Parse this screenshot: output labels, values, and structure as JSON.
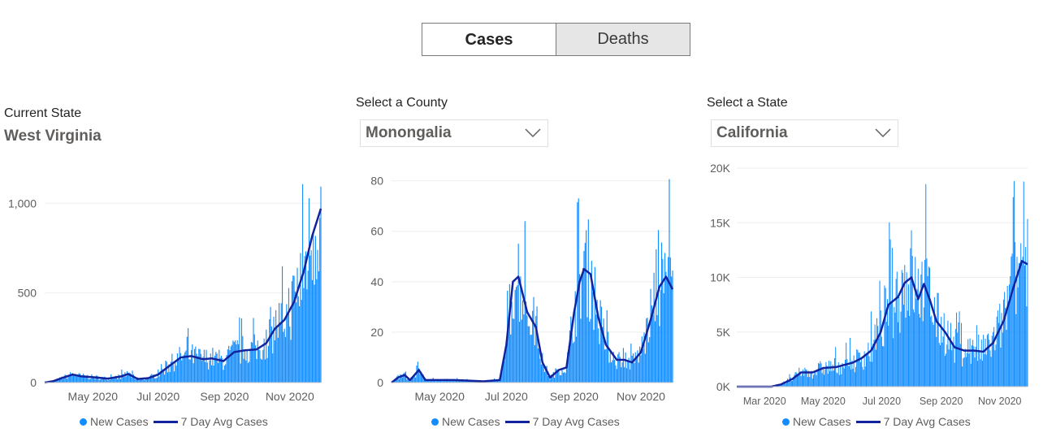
{
  "toggle": {
    "cases_label": "Cases",
    "deaths_label": "Deaths",
    "selected": "Cases"
  },
  "panels": {
    "state": {
      "label": "Current State",
      "value": "West Virginia"
    },
    "county": {
      "label": "Select a County",
      "value": "Monongalia"
    },
    "compare": {
      "label": "Select a State",
      "value": "California"
    }
  },
  "colors": {
    "bars": "#118dff",
    "avg_line": "#12239e"
  },
  "chart_data": [
    {
      "type": "bar",
      "title": "",
      "ylim": [
        0,
        1160
      ],
      "yticks": [
        0,
        500,
        1000
      ],
      "yticklabels": [
        "0",
        "500",
        "1,000"
      ],
      "xlim": [
        "2020-03-17",
        "2020-11-30"
      ],
      "xticks": [
        "2020-05-01",
        "2020-07-01",
        "2020-09-01",
        "2020-11-01"
      ],
      "xticklabels": [
        "May 2020",
        "Jul 2020",
        "Sep 2020",
        "Nov 2020"
      ],
      "anchors": [
        [
          "2020-03-17",
          0
        ],
        [
          "2020-03-25",
          8
        ],
        [
          "2020-04-02",
          25
        ],
        [
          "2020-04-12",
          45
        ],
        [
          "2020-04-20",
          35
        ],
        [
          "2020-05-01",
          30
        ],
        [
          "2020-05-15",
          22
        ],
        [
          "2020-05-28",
          35
        ],
        [
          "2020-06-03",
          48
        ],
        [
          "2020-06-12",
          20
        ],
        [
          "2020-06-22",
          25
        ],
        [
          "2020-07-01",
          45
        ],
        [
          "2020-07-12",
          95
        ],
        [
          "2020-07-22",
          140
        ],
        [
          "2020-08-01",
          148
        ],
        [
          "2020-08-12",
          130
        ],
        [
          "2020-08-20",
          135
        ],
        [
          "2020-08-31",
          120
        ],
        [
          "2020-09-10",
          170
        ],
        [
          "2020-09-20",
          180
        ],
        [
          "2020-10-01",
          185
        ],
        [
          "2020-10-10",
          220
        ],
        [
          "2020-10-18",
          300
        ],
        [
          "2020-10-27",
          350
        ],
        [
          "2020-11-05",
          450
        ],
        [
          "2020-11-14",
          620
        ],
        [
          "2020-11-22",
          820
        ],
        [
          "2020-11-30",
          970
        ]
      ],
      "series": [
        {
          "name": "New Cases",
          "type": "bar"
        },
        {
          "name": "7 Day Avg Cases",
          "type": "line"
        }
      ],
      "legend": {
        "position": "bottom",
        "items": [
          "New Cases",
          "7 Day Avg Cases"
        ]
      }
    },
    {
      "type": "bar",
      "title": "",
      "ylim": [
        0,
        86
      ],
      "yticks": [
        0,
        20,
        40,
        60,
        80
      ],
      "yticklabels": [
        "0",
        "20",
        "40",
        "60",
        "80"
      ],
      "xlim": [
        "2020-03-18",
        "2020-11-30"
      ],
      "xticks": [
        "2020-05-01",
        "2020-07-01",
        "2020-09-01",
        "2020-11-01"
      ],
      "xticklabels": [
        "May 2020",
        "Jul 2020",
        "Sep 2020",
        "Nov 2020"
      ],
      "anchors": [
        [
          "2020-03-18",
          0
        ],
        [
          "2020-03-24",
          2
        ],
        [
          "2020-03-30",
          3
        ],
        [
          "2020-04-04",
          1
        ],
        [
          "2020-04-12",
          5
        ],
        [
          "2020-04-18",
          1
        ],
        [
          "2020-04-26",
          1
        ],
        [
          "2020-05-15",
          1
        ],
        [
          "2020-06-10",
          0.5
        ],
        [
          "2020-06-25",
          1
        ],
        [
          "2020-07-01",
          15
        ],
        [
          "2020-07-07",
          40
        ],
        [
          "2020-07-12",
          42
        ],
        [
          "2020-07-20",
          28
        ],
        [
          "2020-07-28",
          22
        ],
        [
          "2020-08-03",
          8
        ],
        [
          "2020-08-10",
          2
        ],
        [
          "2020-08-18",
          5
        ],
        [
          "2020-08-25",
          6
        ],
        [
          "2020-09-01",
          28
        ],
        [
          "2020-09-06",
          40
        ],
        [
          "2020-09-10",
          45
        ],
        [
          "2020-09-16",
          43
        ],
        [
          "2020-09-23",
          26
        ],
        [
          "2020-09-30",
          15
        ],
        [
          "2020-10-10",
          9
        ],
        [
          "2020-10-17",
          9
        ],
        [
          "2020-10-24",
          8
        ],
        [
          "2020-11-01",
          12
        ],
        [
          "2020-11-10",
          25
        ],
        [
          "2020-11-18",
          38
        ],
        [
          "2020-11-24",
          42
        ],
        [
          "2020-11-30",
          37
        ]
      ],
      "series": [
        {
          "name": "New Cases",
          "type": "bar"
        },
        {
          "name": "7 Day Avg Cases",
          "type": "line"
        }
      ],
      "legend": {
        "position": "bottom",
        "items": [
          "New Cases",
          "7 Day Avg Cases"
        ]
      }
    },
    {
      "type": "bar",
      "title": "",
      "ylim": [
        0,
        20000
      ],
      "yticks": [
        0,
        5000,
        10000,
        15000,
        20000
      ],
      "yticklabels": [
        "0K",
        "5K",
        "10K",
        "15K",
        "20K"
      ],
      "xlim": [
        "2020-02-01",
        "2020-11-30"
      ],
      "xticks": [
        "2020-03-01",
        "2020-05-01",
        "2020-07-01",
        "2020-09-01",
        "2020-11-01"
      ],
      "xticklabels": [
        "Mar 2020",
        "May 2020",
        "Jul 2020",
        "Sep 2020",
        "Nov 2020"
      ],
      "anchors": [
        [
          "2020-02-01",
          0
        ],
        [
          "2020-03-08",
          0
        ],
        [
          "2020-03-18",
          200
        ],
        [
          "2020-03-30",
          700
        ],
        [
          "2020-04-08",
          1300
        ],
        [
          "2020-04-20",
          1300
        ],
        [
          "2020-05-01",
          1700
        ],
        [
          "2020-05-15",
          1800
        ],
        [
          "2020-06-01",
          2200
        ],
        [
          "2020-06-10",
          2600
        ],
        [
          "2020-06-20",
          3300
        ],
        [
          "2020-06-30",
          5000
        ],
        [
          "2020-07-08",
          7500
        ],
        [
          "2020-07-18",
          8200
        ],
        [
          "2020-07-25",
          9500
        ],
        [
          "2020-08-01",
          10000
        ],
        [
          "2020-08-08",
          8000
        ],
        [
          "2020-08-14",
          9400
        ],
        [
          "2020-08-20",
          8000
        ],
        [
          "2020-08-27",
          6000
        ],
        [
          "2020-09-05",
          5000
        ],
        [
          "2020-09-15",
          3600
        ],
        [
          "2020-09-25",
          3300
        ],
        [
          "2020-10-05",
          3300
        ],
        [
          "2020-10-15",
          3200
        ],
        [
          "2020-10-25",
          4000
        ],
        [
          "2020-11-05",
          6000
        ],
        [
          "2020-11-15",
          9000
        ],
        [
          "2020-11-24",
          11500
        ],
        [
          "2020-11-30",
          11200
        ]
      ],
      "series": [
        {
          "name": "New Cases",
          "type": "bar"
        },
        {
          "name": "7 Day Avg Cases",
          "type": "line"
        }
      ],
      "legend": {
        "position": "bottom",
        "items": [
          "New Cases",
          "7 Day Avg Cases"
        ]
      }
    }
  ]
}
